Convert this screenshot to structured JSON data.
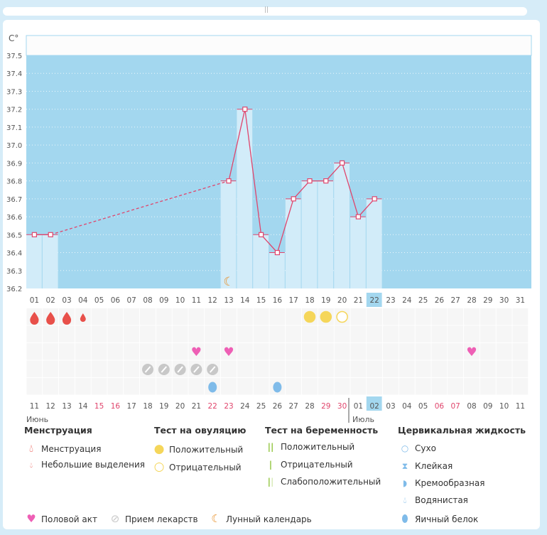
{
  "y_unit": "C°",
  "y_ticks": [
    "37.5",
    "37.4",
    "37.3",
    "37.2",
    "37.1",
    "37.0",
    "36.9",
    "36.8",
    "36.7",
    "36.6",
    "36.5",
    "36.4",
    "36.3",
    "36.2"
  ],
  "cycle_days": [
    "01",
    "02",
    "03",
    "04",
    "05",
    "06",
    "07",
    "08",
    "09",
    "10",
    "11",
    "12",
    "13",
    "14",
    "15",
    "16",
    "17",
    "18",
    "19",
    "20",
    "21",
    "22",
    "23",
    "24",
    "25",
    "26",
    "27",
    "28",
    "29",
    "30",
    "31"
  ],
  "dates": [
    "11",
    "12",
    "13",
    "14",
    "15",
    "16",
    "17",
    "18",
    "19",
    "20",
    "21",
    "22",
    "23",
    "24",
    "25",
    "26",
    "27",
    "28",
    "29",
    "30",
    "01",
    "02",
    "03",
    "04",
    "05",
    "06",
    "07",
    "08",
    "09",
    "10",
    "11"
  ],
  "weekend_date_indices": [
    4,
    5,
    11,
    12,
    18,
    19,
    25,
    26
  ],
  "today_index": 21,
  "months": [
    "Июнь",
    "Июль"
  ],
  "temperatures": {
    "1": 36.5,
    "2": 36.5,
    "13": 36.8,
    "14": 37.2,
    "15": 36.5,
    "16": 36.4,
    "17": 36.7,
    "18": 36.8,
    "19": 36.8,
    "20": 36.9,
    "21": 36.6,
    "22": 36.7
  },
  "menstruation": {
    "1": "heavy",
    "2": "heavy",
    "3": "heavy",
    "4": "light"
  },
  "ovulation_test": {
    "18": "positive",
    "19": "positive",
    "20": "negative"
  },
  "intercourse_days": [
    11,
    13,
    28
  ],
  "medication_days": [
    8,
    9,
    10,
    11,
    12
  ],
  "cervical_fluid": {
    "12": "egg-white",
    "16": "egg-white"
  },
  "moon_days": [
    13
  ],
  "colors": {
    "chart_bg": "#a3d7ef",
    "bar": "#d2ecf9",
    "line": "#e0456c",
    "blood": "#e8504a",
    "ovulation": "#f5d65a",
    "heart": "#ee5fb5",
    "pill": "#c8c8c8",
    "fluid": "#7fbbe9",
    "moon": "#e8922e",
    "weekend": "#e0456c",
    "preg": "#8fc43a"
  },
  "legend": {
    "menstruation": {
      "title": "Менструация",
      "items": [
        "Менструация",
        "Небольшие выделения"
      ]
    },
    "ovulation": {
      "title": "Тест на овуляцию",
      "items": [
        "Положительный",
        "Отрицательный"
      ]
    },
    "pregnancy": {
      "title": "Тест на беременность",
      "items": [
        "Положительный",
        "Отрицательный",
        "Слабоположительный"
      ]
    },
    "cervical": {
      "title": "Цервикальная жидкость",
      "items": [
        "Сухо",
        "Клейкая",
        "Кремообразная",
        "Водянистая",
        "Яичный белок"
      ]
    },
    "other": [
      "Половой акт",
      "Прием лекарств",
      "Лунный календарь"
    ]
  }
}
